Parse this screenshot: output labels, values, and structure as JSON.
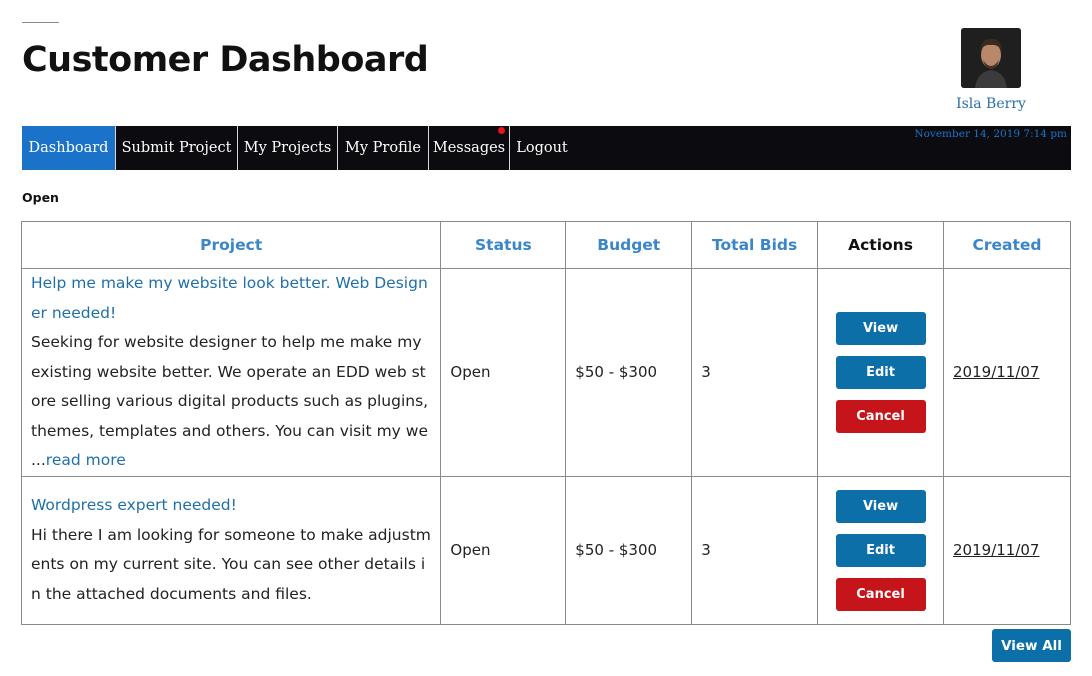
{
  "header": {
    "title": "Customer Dashboard"
  },
  "profile": {
    "name": "Isla Berry"
  },
  "nav": {
    "items": [
      {
        "label": "Dashboard",
        "active": true
      },
      {
        "label": "Submit Project"
      },
      {
        "label": "My Projects"
      },
      {
        "label": "My Profile"
      },
      {
        "label": "Messages",
        "has_notification": true
      },
      {
        "label": "Logout"
      }
    ],
    "datetime": "November 14, 2019 7:14 pm"
  },
  "filter": {
    "label": "Open"
  },
  "table": {
    "columns": [
      "Project",
      "Status",
      "Budget",
      "Total Bids",
      "Actions",
      "Created"
    ],
    "rows": [
      {
        "title": "Help me make my website look better. Web Designer needed!",
        "description": "Seeking for website designer to help me make my existing website better. We operate an EDD web store selling various digital products such as plugins, themes, templates and others. You can visit my we ...",
        "read_more": "read more",
        "status": "Open",
        "budget": "$50 - $300",
        "bids": "3",
        "created": "2019/11/07"
      },
      {
        "title": "Wordpress expert needed!",
        "description": "Hi there I am looking for someone to make adjustments on my current site. You can see other details in the attached documents and files.",
        "status": "Open",
        "budget": "$50 - $300",
        "bids": "3",
        "created": "2019/11/07"
      }
    ],
    "actions": {
      "view": "View",
      "edit": "Edit",
      "cancel": "Cancel"
    }
  },
  "footer": {
    "view_all": "View All"
  },
  "colors": {
    "accent": "#1a73c9",
    "button": "#0d6fa8",
    "cancel": "#c6141b",
    "nav_bg": "#0c0c10",
    "link": "#1f70a8"
  }
}
